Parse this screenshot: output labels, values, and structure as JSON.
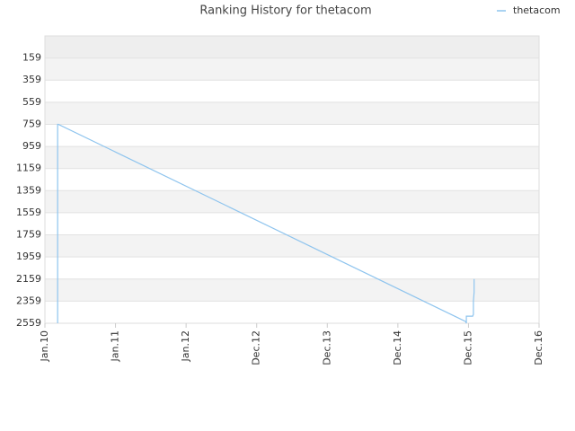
{
  "chart_data": {
    "type": "line",
    "title": "Ranking History for thetacom",
    "x": [
      0.18,
      0.18,
      0.19,
      5.96,
      5.97,
      5.97,
      6.06,
      6.07,
      6.07,
      6.08,
      6.08
    ],
    "series": [
      {
        "name": "thetacom",
        "color": "#8ec4ee",
        "values": [
          2559,
          759,
          759,
          2543,
          2559,
          2495,
          2495,
          2479,
          2359,
          2279,
          2159
        ]
      }
    ],
    "xlim": [
      0,
      7
    ],
    "xticks": [
      {
        "value": 0,
        "label": "Jan.10"
      },
      {
        "value": 1,
        "label": "Jan.11"
      },
      {
        "value": 2,
        "label": "Jan.12"
      },
      {
        "value": 3,
        "label": "Dec.12"
      },
      {
        "value": 4,
        "label": "Dec.13"
      },
      {
        "value": 5,
        "label": "Dec.14"
      },
      {
        "value": 6,
        "label": "Dec.15"
      },
      {
        "value": 7,
        "label": "Dec.16"
      }
    ],
    "ylim": [
      -41,
      2559
    ],
    "invert_y": true,
    "yticks": [
      159,
      359,
      559,
      759,
      959,
      1159,
      1359,
      1559,
      1759,
      1959,
      2159,
      2359,
      2559
    ],
    "legend": "top-right"
  }
}
